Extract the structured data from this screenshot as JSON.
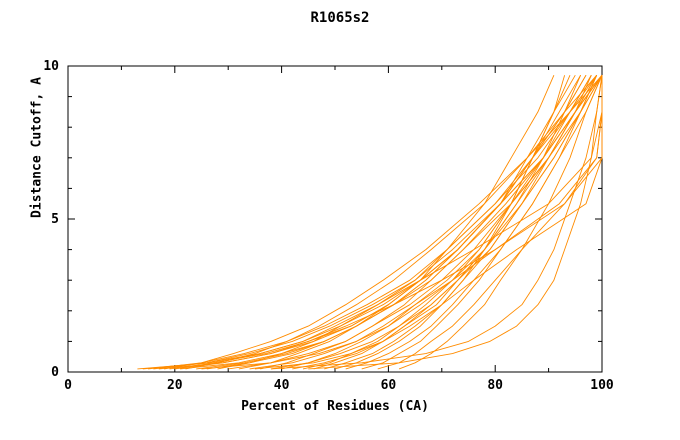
{
  "chart_data": {
    "type": "line",
    "title": "R1065s2",
    "xlabel": "Percent of Residues (CA)",
    "ylabel": "Distance Cutoff, A",
    "xlim": [
      0,
      100
    ],
    "ylim": [
      0,
      10
    ],
    "x_major_ticks": [
      0,
      20,
      40,
      60,
      80,
      100
    ],
    "x_minor_step": 10,
    "y_major_ticks": [
      0,
      5,
      10
    ],
    "y_minor_step": 1,
    "grid": false,
    "legend": null,
    "line_color": "#ff8c00",
    "axis_color": "#000000",
    "background_color": "#ffffff",
    "cutoffs_y": [
      0.1,
      0.3,
      0.6,
      1.0,
      1.5,
      2.2,
      3.0,
      4.0,
      5.5,
      7.0,
      8.5,
      9.7
    ],
    "series_x_at_cutoffs": [
      [
        13,
        27,
        37,
        45,
        53,
        60,
        66,
        71,
        78,
        83,
        88,
        91
      ],
      [
        14,
        26,
        36,
        44,
        51,
        59,
        66,
        73,
        81,
        87,
        93,
        97
      ],
      [
        15,
        25,
        33,
        41,
        48,
        56,
        64,
        71,
        80,
        88,
        94,
        99
      ],
      [
        16,
        26,
        34,
        42,
        49,
        57,
        65,
        72,
        81,
        89,
        95,
        100
      ],
      [
        17,
        29,
        38,
        46,
        53,
        60,
        66,
        73,
        81,
        87,
        92,
        96
      ],
      [
        18,
        25,
        31,
        38,
        45,
        52,
        59,
        67,
        77,
        86,
        94,
        100
      ],
      [
        19,
        28,
        36,
        44,
        50,
        58,
        65,
        71,
        80,
        87,
        94,
        98
      ],
      [
        20,
        29,
        38,
        45,
        52,
        61,
        70,
        80,
        92,
        99,
        100,
        100
      ],
      [
        21,
        32,
        40,
        48,
        54,
        61,
        67,
        73,
        81,
        86,
        91,
        95
      ],
      [
        22,
        28,
        35,
        41,
        47,
        54,
        61,
        68,
        78,
        86,
        93,
        99
      ],
      [
        24,
        33,
        41,
        48,
        54,
        61,
        68,
        74,
        83,
        90,
        96,
        100
      ],
      [
        26,
        34,
        42,
        48,
        54,
        61,
        67,
        73,
        81,
        87,
        93,
        97
      ],
      [
        28,
        34,
        40,
        46,
        51,
        58,
        66,
        76,
        90,
        98,
        100,
        100
      ],
      [
        30,
        38,
        45,
        52,
        57,
        64,
        70,
        76,
        83,
        90,
        95,
        99
      ],
      [
        32,
        38,
        43,
        49,
        54,
        60,
        66,
        73,
        81,
        89,
        95,
        100
      ],
      [
        34,
        42,
        48,
        54,
        59,
        65,
        71,
        77,
        83,
        89,
        94,
        98
      ],
      [
        36,
        41,
        46,
        52,
        57,
        63,
        68,
        74,
        82,
        89,
        95,
        100
      ],
      [
        38,
        45,
        51,
        57,
        62,
        68,
        73,
        79,
        85,
        91,
        96,
        99
      ],
      [
        40,
        45,
        50,
        55,
        60,
        65,
        72,
        80,
        93,
        100,
        100,
        100
      ],
      [
        42,
        48,
        54,
        59,
        63,
        69,
        73,
        78,
        84,
        89,
        93,
        96
      ],
      [
        44,
        49,
        53,
        58,
        62,
        67,
        72,
        78,
        85,
        91,
        96,
        100
      ],
      [
        46,
        50,
        55,
        59,
        63,
        68,
        73,
        78,
        84,
        90,
        95,
        99
      ],
      [
        48,
        52,
        57,
        61,
        65,
        70,
        76,
        84,
        97,
        100,
        100,
        100
      ],
      [
        50,
        54,
        58,
        62,
        66,
        70,
        74,
        79,
        85,
        90,
        95,
        98
      ],
      [
        52,
        56,
        60,
        64,
        68,
        72,
        76,
        81,
        87,
        92,
        97,
        100
      ],
      [
        55,
        59,
        62,
        66,
        69,
        73,
        77,
        81,
        87,
        92,
        96,
        99
      ],
      [
        58,
        62,
        65,
        68,
        72,
        76,
        80,
        85,
        93,
        99,
        100,
        100
      ],
      [
        62,
        65,
        68,
        71,
        74,
        78,
        81,
        85,
        90,
        94,
        97,
        100
      ],
      [
        35,
        46,
        53,
        59,
        64,
        70,
        74,
        78,
        83,
        87,
        91,
        93
      ],
      [
        25,
        38,
        47,
        54,
        60,
        66,
        72,
        77,
        83,
        87,
        91,
        94
      ],
      [
        45,
        62,
        72,
        79,
        84,
        88,
        91,
        93,
        96,
        98,
        99,
        100
      ],
      [
        38,
        55,
        67,
        75,
        80,
        85,
        88,
        91,
        94,
        97,
        99,
        100
      ]
    ]
  }
}
